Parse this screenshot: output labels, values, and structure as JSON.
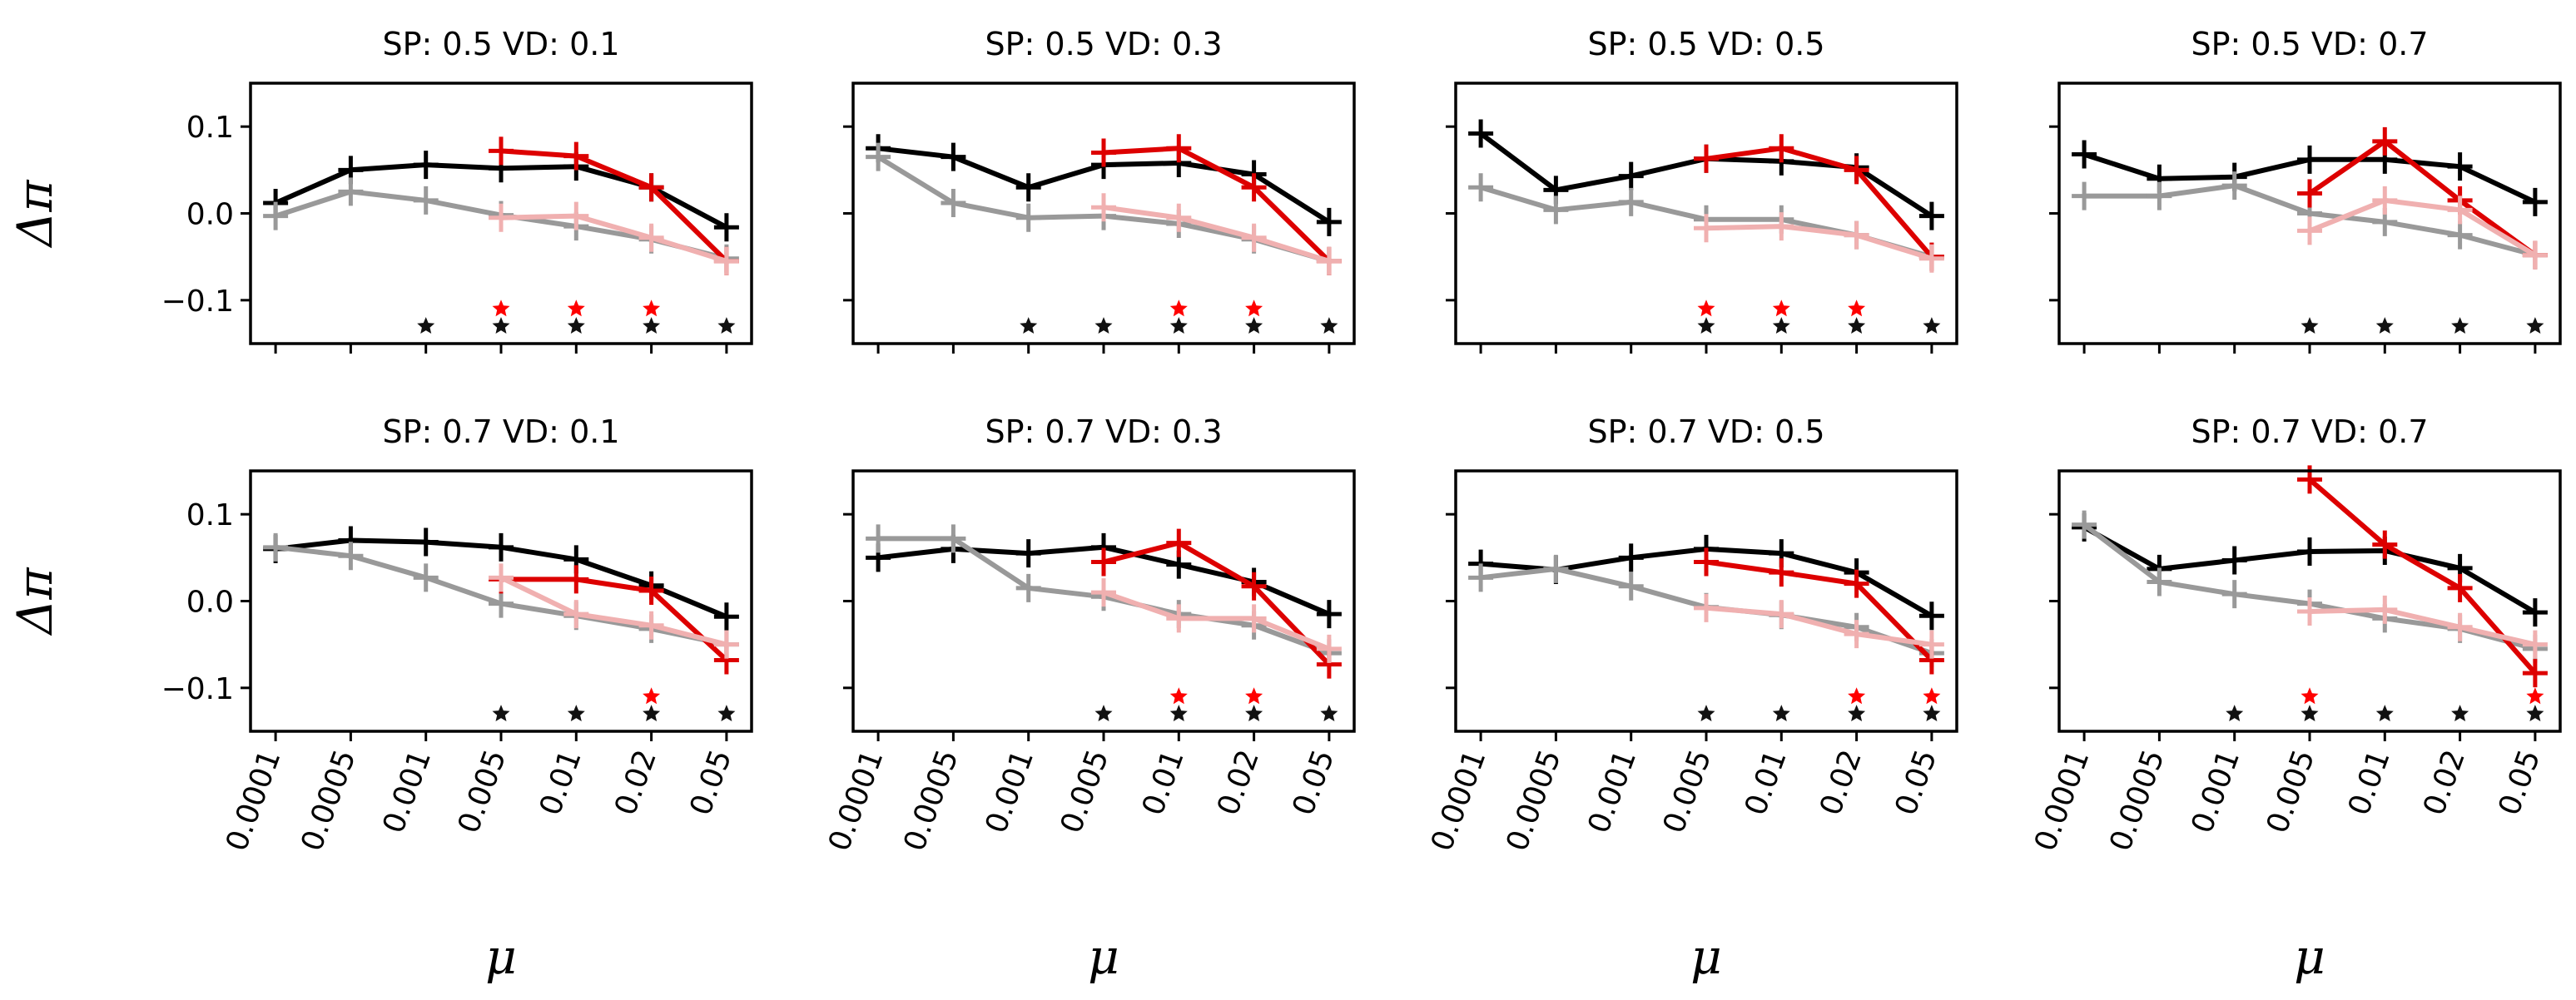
{
  "figure": {
    "ylabel": "Δπ",
    "xlabel": "μ",
    "x_tick_labels": [
      "0.0001",
      "0.0005",
      "0.001",
      "0.005",
      "0.01",
      "0.02",
      "0.05"
    ],
    "y_tick_labels": [
      "0.1",
      "0.0",
      "−0.1"
    ],
    "y_tick_values": [
      0.1,
      0.0,
      -0.1
    ]
  },
  "colors": {
    "black": "#000000",
    "gray": "#999999",
    "red": "#dd0000",
    "pink": "#f0b0b0",
    "star_red": "#ff0000",
    "star_black": "#111111"
  },
  "chart_data": [
    {
      "type": "line",
      "title": "SP: 0.5 VD: 0.1",
      "ylim": [
        -0.15,
        0.15
      ],
      "series": [
        {
          "color": "black",
          "values": [
            0.012,
            0.05,
            0.056,
            0.052,
            0.054,
            0.03,
            -0.016
          ]
        },
        {
          "color": "gray",
          "values": [
            -0.003,
            0.025,
            0.015,
            -0.002,
            -0.015,
            -0.03,
            -0.052
          ]
        },
        {
          "color": "red",
          "values": [
            null,
            null,
            null,
            0.072,
            0.066,
            0.03,
            -0.055
          ]
        },
        {
          "color": "pink",
          "values": [
            null,
            null,
            null,
            -0.005,
            -0.003,
            -0.028,
            -0.055
          ]
        }
      ],
      "stars_red": [
        3,
        4,
        5
      ],
      "stars_black": [
        2,
        3,
        4,
        5,
        6
      ]
    },
    {
      "type": "line",
      "title": "SP: 0.5 VD: 0.3",
      "ylim": [
        -0.15,
        0.15
      ],
      "series": [
        {
          "color": "black",
          "values": [
            0.075,
            0.065,
            0.03,
            0.056,
            0.058,
            0.045,
            -0.01
          ]
        },
        {
          "color": "gray",
          "values": [
            0.065,
            0.012,
            -0.005,
            -0.003,
            -0.012,
            -0.03,
            -0.055
          ]
        },
        {
          "color": "red",
          "values": [
            null,
            null,
            null,
            0.07,
            0.075,
            0.03,
            -0.055
          ]
        },
        {
          "color": "pink",
          "values": [
            null,
            null,
            null,
            0.007,
            -0.005,
            -0.028,
            -0.055
          ]
        }
      ],
      "stars_red": [
        4,
        5
      ],
      "stars_black": [
        2,
        3,
        4,
        5,
        6
      ]
    },
    {
      "type": "line",
      "title": "SP: 0.5 VD: 0.5",
      "ylim": [
        -0.15,
        0.15
      ],
      "series": [
        {
          "color": "black",
          "values": [
            0.092,
            0.027,
            0.043,
            0.063,
            0.06,
            0.053,
            -0.003
          ]
        },
        {
          "color": "gray",
          "values": [
            0.03,
            0.004,
            0.013,
            -0.007,
            -0.007,
            -0.025,
            -0.05
          ]
        },
        {
          "color": "red",
          "values": [
            null,
            null,
            null,
            0.063,
            0.075,
            0.05,
            -0.05
          ]
        },
        {
          "color": "pink",
          "values": [
            null,
            null,
            null,
            -0.017,
            -0.015,
            -0.025,
            -0.052
          ]
        }
      ],
      "stars_red": [
        3,
        4,
        5
      ],
      "stars_black": [
        3,
        4,
        5,
        6
      ]
    },
    {
      "type": "line",
      "title": "SP: 0.5 VD: 0.7",
      "ylim": [
        -0.15,
        0.15
      ],
      "series": [
        {
          "color": "black",
          "values": [
            0.068,
            0.04,
            0.042,
            0.062,
            0.062,
            0.054,
            0.013
          ]
        },
        {
          "color": "gray",
          "values": [
            0.02,
            0.02,
            0.032,
            0.0,
            -0.01,
            -0.025,
            -0.048
          ]
        },
        {
          "color": "red",
          "values": [
            null,
            null,
            null,
            0.023,
            0.083,
            0.015,
            -0.048
          ]
        },
        {
          "color": "pink",
          "values": [
            null,
            null,
            null,
            -0.02,
            0.015,
            0.004,
            -0.048
          ]
        }
      ],
      "stars_red": [],
      "stars_black": [
        3,
        4,
        5,
        6
      ]
    },
    {
      "type": "line",
      "title": "SP: 0.7 VD: 0.1",
      "ylim": [
        -0.15,
        0.15
      ],
      "series": [
        {
          "color": "black",
          "values": [
            0.06,
            0.07,
            0.068,
            0.062,
            0.048,
            0.018,
            -0.018
          ]
        },
        {
          "color": "gray",
          "values": [
            0.062,
            0.052,
            0.027,
            -0.003,
            -0.017,
            -0.032,
            -0.05
          ]
        },
        {
          "color": "red",
          "values": [
            null,
            null,
            null,
            0.025,
            0.025,
            0.012,
            -0.068
          ]
        },
        {
          "color": "pink",
          "values": [
            null,
            null,
            null,
            0.027,
            -0.015,
            -0.028,
            -0.05
          ]
        }
      ],
      "stars_red": [
        5
      ],
      "stars_black": [
        3,
        4,
        5,
        6
      ]
    },
    {
      "type": "line",
      "title": "SP: 0.7 VD: 0.3",
      "ylim": [
        -0.15,
        0.15
      ],
      "series": [
        {
          "color": "black",
          "values": [
            0.05,
            0.06,
            0.055,
            0.062,
            0.042,
            0.022,
            -0.015
          ]
        },
        {
          "color": "gray",
          "values": [
            0.072,
            0.072,
            0.015,
            0.005,
            -0.015,
            -0.028,
            -0.06
          ]
        },
        {
          "color": "red",
          "values": [
            null,
            null,
            null,
            0.045,
            0.067,
            0.017,
            -0.073
          ]
        },
        {
          "color": "pink",
          "values": [
            null,
            null,
            null,
            0.01,
            -0.02,
            -0.02,
            -0.055
          ]
        }
      ],
      "stars_red": [
        4,
        5
      ],
      "stars_black": [
        3,
        4,
        5,
        6
      ]
    },
    {
      "type": "line",
      "title": "SP: 0.7 VD: 0.5",
      "ylim": [
        -0.15,
        0.15
      ],
      "series": [
        {
          "color": "black",
          "values": [
            0.043,
            0.036,
            0.05,
            0.06,
            0.055,
            0.033,
            -0.017
          ]
        },
        {
          "color": "gray",
          "values": [
            0.027,
            0.037,
            0.017,
            -0.007,
            -0.016,
            -0.03,
            -0.06
          ]
        },
        {
          "color": "red",
          "values": [
            null,
            null,
            null,
            0.045,
            0.033,
            0.02,
            -0.068
          ]
        },
        {
          "color": "pink",
          "values": [
            null,
            null,
            null,
            -0.008,
            -0.015,
            -0.038,
            -0.05
          ]
        }
      ],
      "stars_red": [
        5,
        6
      ],
      "stars_black": [
        3,
        4,
        5,
        6
      ]
    },
    {
      "type": "line",
      "title": "SP: 0.7 VD: 0.7",
      "ylim": [
        -0.15,
        0.15
      ],
      "series": [
        {
          "color": "black",
          "values": [
            0.085,
            0.037,
            0.047,
            0.057,
            0.058,
            0.038,
            -0.013
          ]
        },
        {
          "color": "gray",
          "values": [
            0.088,
            0.022,
            0.008,
            -0.003,
            -0.02,
            -0.032,
            -0.055
          ]
        },
        {
          "color": "red",
          "values": [
            null,
            null,
            null,
            0.14,
            0.065,
            0.015,
            -0.083
          ]
        },
        {
          "color": "pink",
          "values": [
            null,
            null,
            null,
            -0.012,
            -0.01,
            -0.03,
            -0.05
          ]
        }
      ],
      "stars_red": [
        3,
        6
      ],
      "stars_black": [
        2,
        3,
        4,
        5,
        6
      ]
    }
  ]
}
